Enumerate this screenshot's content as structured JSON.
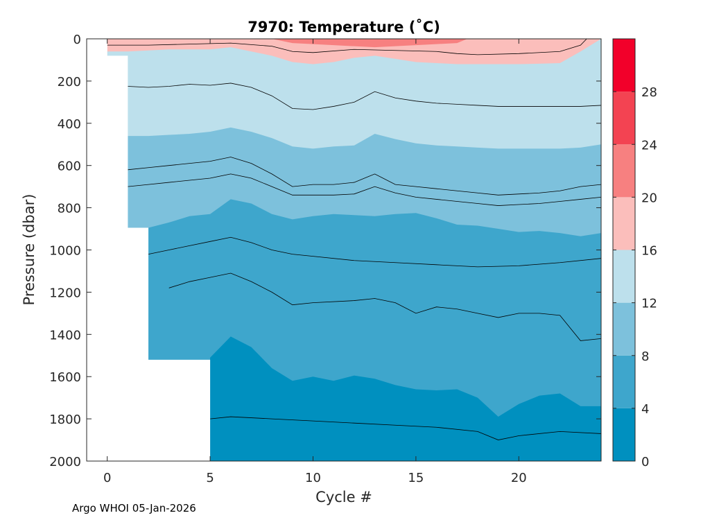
{
  "chart_data": {
    "type": "heatmap",
    "subtype": "filled-contour",
    "title": "7970:  Temperature (˚C)",
    "xlabel": "Cycle #",
    "ylabel": "Pressure (dbar)",
    "xlim": [
      -1,
      24
    ],
    "ylim": [
      2000,
      0
    ],
    "xticks": [
      0,
      5,
      10,
      15,
      20
    ],
    "yticks": [
      0,
      200,
      400,
      600,
      800,
      1000,
      1200,
      1400,
      1600,
      1800,
      2000
    ],
    "colorbar": {
      "ticks": [
        0,
        4,
        8,
        12,
        16,
        20,
        24,
        28
      ],
      "range": [
        0,
        32
      ],
      "levels": [
        {
          "from": 0,
          "to": 4,
          "color": "#0090BF"
        },
        {
          "from": 4,
          "to": 8,
          "color": "#3EA6CC"
        },
        {
          "from": 8,
          "to": 12,
          "color": "#7DC1DC"
        },
        {
          "from": 12,
          "to": 16,
          "color": "#BDE0EC"
        },
        {
          "from": 16,
          "to": 20,
          "color": "#FBBEBB"
        },
        {
          "from": 20,
          "to": 24,
          "color": "#F78080"
        },
        {
          "from": 24,
          "to": 28,
          "color": "#F34352"
        },
        {
          "from": 28,
          "to": 32,
          "color": "#F2002A"
        }
      ]
    },
    "profile_start_pressure": [
      {
        "cycle": 0,
        "max_pressure": 80
      },
      {
        "cycle": 1,
        "max_pressure": 895
      },
      {
        "cycle": 2,
        "max_pressure": 1520
      },
      {
        "cycle": 5,
        "max_pressure": 2000
      }
    ],
    "bands": [
      {
        "name": "band-0-4",
        "color": "#0090BF",
        "boundary": [
          [
            5,
            1510
          ],
          [
            6,
            1410
          ],
          [
            7,
            1460
          ],
          [
            8,
            1560
          ],
          [
            9,
            1620
          ],
          [
            10,
            1600
          ],
          [
            11,
            1620
          ],
          [
            12,
            1595
          ],
          [
            13,
            1610
          ],
          [
            14,
            1640
          ],
          [
            15,
            1660
          ],
          [
            16,
            1665
          ],
          [
            17,
            1660
          ],
          [
            18,
            1700
          ],
          [
            19,
            1790
          ],
          [
            20,
            1730
          ],
          [
            21,
            1690
          ],
          [
            22,
            1680
          ],
          [
            23,
            1740
          ],
          [
            24,
            1740
          ]
        ]
      },
      {
        "name": "band-4-8",
        "color": "#3EA6CC",
        "boundary": [
          [
            1,
            895
          ],
          [
            2,
            895
          ],
          [
            3,
            870
          ],
          [
            4,
            840
          ],
          [
            5,
            830
          ],
          [
            6,
            760
          ],
          [
            7,
            780
          ],
          [
            8,
            830
          ],
          [
            9,
            855
          ],
          [
            10,
            840
          ],
          [
            11,
            830
          ],
          [
            12,
            835
          ],
          [
            13,
            840
          ],
          [
            14,
            830
          ],
          [
            15,
            825
          ],
          [
            16,
            850
          ],
          [
            17,
            880
          ],
          [
            18,
            885
          ],
          [
            19,
            900
          ],
          [
            20,
            915
          ],
          [
            21,
            910
          ],
          [
            22,
            920
          ],
          [
            23,
            935
          ],
          [
            24,
            920
          ]
        ]
      },
      {
        "name": "band-8-12",
        "color": "#7DC1DC",
        "boundary": [
          [
            1,
            460
          ],
          [
            2,
            460
          ],
          [
            3,
            455
          ],
          [
            4,
            450
          ],
          [
            5,
            440
          ],
          [
            6,
            420
          ],
          [
            7,
            440
          ],
          [
            8,
            470
          ],
          [
            9,
            510
          ],
          [
            10,
            520
          ],
          [
            11,
            510
          ],
          [
            12,
            505
          ],
          [
            13,
            450
          ],
          [
            14,
            475
          ],
          [
            15,
            495
          ],
          [
            16,
            505
          ],
          [
            17,
            510
          ],
          [
            18,
            515
          ],
          [
            19,
            520
          ],
          [
            20,
            520
          ],
          [
            21,
            520
          ],
          [
            22,
            520
          ],
          [
            23,
            515
          ],
          [
            24,
            500
          ]
        ]
      },
      {
        "name": "band-12-16",
        "color": "#BDE0EC",
        "boundary": [
          [
            0,
            60
          ],
          [
            1,
            60
          ],
          [
            2,
            55
          ],
          [
            3,
            50
          ],
          [
            4,
            50
          ],
          [
            5,
            50
          ],
          [
            6,
            40
          ],
          [
            7,
            60
          ],
          [
            8,
            80
          ],
          [
            9,
            110
          ],
          [
            10,
            120
          ],
          [
            11,
            110
          ],
          [
            12,
            90
          ],
          [
            13,
            80
          ],
          [
            14,
            95
          ],
          [
            15,
            110
          ],
          [
            16,
            115
          ],
          [
            17,
            120
          ],
          [
            18,
            120
          ],
          [
            19,
            120
          ],
          [
            20,
            120
          ],
          [
            21,
            118
          ],
          [
            22,
            115
          ],
          [
            23,
            60
          ],
          [
            24,
            0
          ]
        ]
      },
      {
        "name": "band-16-20",
        "color": "#FBBEBB",
        "boundary": [
          [
            0,
            0
          ],
          [
            24,
            0
          ]
        ]
      },
      {
        "name": "band-20-24",
        "color": "#F78080",
        "boundary": [
          [
            8,
            0
          ],
          [
            9,
            20
          ],
          [
            10,
            25
          ],
          [
            11,
            30
          ],
          [
            12,
            35
          ],
          [
            13,
            40
          ],
          [
            14,
            35
          ],
          [
            15,
            30
          ],
          [
            16,
            25
          ],
          [
            17,
            20
          ],
          [
            17.5,
            0
          ]
        ]
      }
    ],
    "contours": [
      {
        "level": 2,
        "points": [
          [
            5,
            1800
          ],
          [
            6,
            1790
          ],
          [
            8,
            1800
          ],
          [
            10,
            1810
          ],
          [
            12,
            1820
          ],
          [
            14,
            1830
          ],
          [
            16,
            1840
          ],
          [
            18,
            1860
          ],
          [
            19,
            1900
          ],
          [
            20,
            1880
          ],
          [
            22,
            1860
          ],
          [
            24,
            1870
          ]
        ]
      },
      {
        "level": 6,
        "points": [
          [
            2,
            1020
          ],
          [
            3,
            1000
          ],
          [
            4,
            980
          ],
          [
            5,
            960
          ],
          [
            6,
            940
          ],
          [
            7,
            965
          ],
          [
            8,
            1000
          ],
          [
            9,
            1020
          ],
          [
            10,
            1030
          ],
          [
            12,
            1050
          ],
          [
            14,
            1060
          ],
          [
            16,
            1070
          ],
          [
            18,
            1080
          ],
          [
            20,
            1075
          ],
          [
            22,
            1060
          ],
          [
            24,
            1040
          ]
        ]
      },
      {
        "level": 6,
        "points": [
          [
            3,
            1180
          ],
          [
            4,
            1150
          ],
          [
            5,
            1130
          ],
          [
            6,
            1110
          ],
          [
            7,
            1150
          ],
          [
            8,
            1200
          ],
          [
            9,
            1260
          ],
          [
            10,
            1250
          ],
          [
            12,
            1240
          ],
          [
            13,
            1230
          ],
          [
            14,
            1250
          ],
          [
            15,
            1300
          ],
          [
            16,
            1270
          ],
          [
            17,
            1280
          ],
          [
            18,
            1300
          ],
          [
            19,
            1320
          ],
          [
            20,
            1300
          ],
          [
            21,
            1300
          ],
          [
            22,
            1310
          ],
          [
            23,
            1430
          ],
          [
            24,
            1420
          ]
        ]
      },
      {
        "level": 10,
        "points": [
          [
            1,
            620
          ],
          [
            2,
            610
          ],
          [
            3,
            600
          ],
          [
            4,
            590
          ],
          [
            5,
            580
          ],
          [
            6,
            560
          ],
          [
            7,
            590
          ],
          [
            8,
            640
          ],
          [
            9,
            700
          ],
          [
            10,
            690
          ],
          [
            11,
            690
          ],
          [
            12,
            680
          ],
          [
            13,
            640
          ],
          [
            14,
            690
          ],
          [
            15,
            700
          ],
          [
            16,
            710
          ],
          [
            17,
            720
          ],
          [
            18,
            730
          ],
          [
            19,
            740
          ],
          [
            20,
            735
          ],
          [
            21,
            730
          ],
          [
            22,
            720
          ],
          [
            23,
            700
          ],
          [
            24,
            690
          ]
        ]
      },
      {
        "level": 10,
        "points": [
          [
            1,
            700
          ],
          [
            2,
            690
          ],
          [
            3,
            680
          ],
          [
            4,
            670
          ],
          [
            5,
            660
          ],
          [
            6,
            640
          ],
          [
            7,
            660
          ],
          [
            8,
            700
          ],
          [
            9,
            740
          ],
          [
            10,
            740
          ],
          [
            11,
            740
          ],
          [
            12,
            735
          ],
          [
            13,
            700
          ],
          [
            14,
            730
          ],
          [
            15,
            750
          ],
          [
            16,
            760
          ],
          [
            17,
            770
          ],
          [
            18,
            780
          ],
          [
            19,
            790
          ],
          [
            20,
            785
          ],
          [
            21,
            780
          ],
          [
            22,
            770
          ],
          [
            23,
            760
          ],
          [
            24,
            750
          ]
        ]
      },
      {
        "level": 14,
        "points": [
          [
            1,
            225
          ],
          [
            2,
            230
          ],
          [
            3,
            225
          ],
          [
            4,
            215
          ],
          [
            5,
            220
          ],
          [
            6,
            210
          ],
          [
            7,
            230
          ],
          [
            8,
            270
          ],
          [
            9,
            330
          ],
          [
            10,
            335
          ],
          [
            11,
            320
          ],
          [
            12,
            300
          ],
          [
            13,
            250
          ],
          [
            14,
            280
          ],
          [
            15,
            295
          ],
          [
            16,
            305
          ],
          [
            17,
            310
          ],
          [
            18,
            315
          ],
          [
            19,
            320
          ],
          [
            20,
            320
          ],
          [
            21,
            320
          ],
          [
            22,
            320
          ],
          [
            23,
            320
          ],
          [
            24,
            315
          ]
        ]
      },
      {
        "level": 18,
        "points": [
          [
            0,
            30
          ],
          [
            2,
            30
          ],
          [
            4,
            25
          ],
          [
            6,
            20
          ],
          [
            8,
            35
          ],
          [
            9,
            60
          ],
          [
            10,
            65
          ],
          [
            12,
            50
          ],
          [
            14,
            55
          ],
          [
            16,
            60
          ],
          [
            17,
            70
          ],
          [
            18,
            75
          ],
          [
            20,
            70
          ],
          [
            22,
            60
          ],
          [
            23,
            30
          ],
          [
            23.3,
            0
          ]
        ]
      }
    ],
    "footer": "Argo WHOI 05-Jan-2026"
  }
}
